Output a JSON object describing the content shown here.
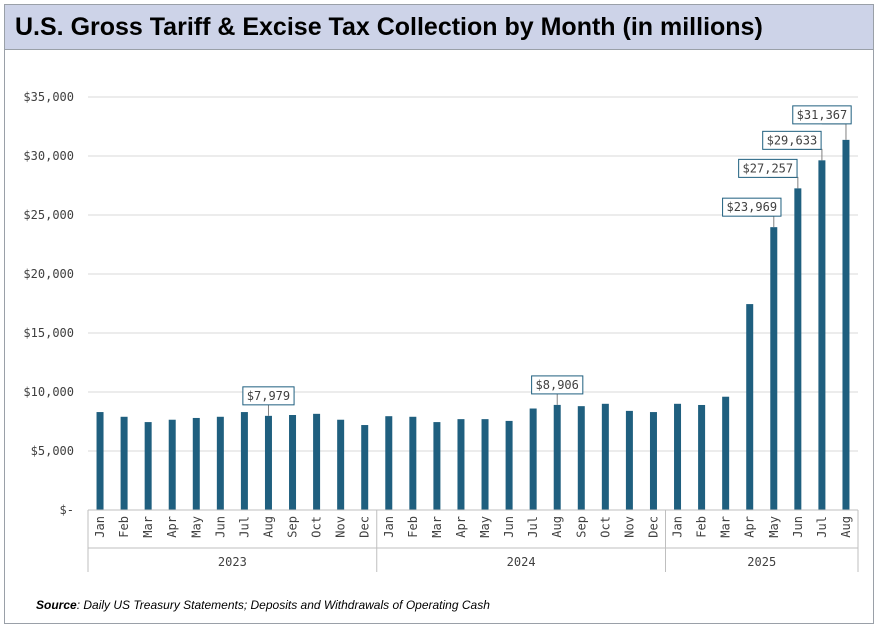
{
  "chart_data": {
    "type": "bar",
    "title": "U.S. Gross Tariff & Excise Tax Collection by Month (in millions)",
    "xlabel": "",
    "ylabel": "",
    "ylim": [
      0,
      35000
    ],
    "yticks": [
      0,
      5000,
      10000,
      15000,
      20000,
      25000,
      30000,
      35000
    ],
    "ytick_labels": [
      "$-",
      "$5,000",
      "$10,000",
      "$15,000",
      "$20,000",
      "$25,000",
      "$30,000",
      "$35,000"
    ],
    "grid": true,
    "legend": "none",
    "bar_color": "#1f5f7f",
    "groups": [
      {
        "label": "2023",
        "months": [
          "Jan",
          "Feb",
          "Mar",
          "Apr",
          "May",
          "Jun",
          "Jul",
          "Aug",
          "Sep",
          "Oct",
          "Nov",
          "Dec"
        ],
        "values": [
          8300,
          7900,
          7450,
          7650,
          7800,
          7900,
          8300,
          7979,
          8050,
          8150,
          7650,
          7200
        ]
      },
      {
        "label": "2024",
        "months": [
          "Jan",
          "Feb",
          "Mar",
          "Apr",
          "May",
          "Jun",
          "Jul",
          "Aug",
          "Sep",
          "Oct",
          "Nov",
          "Dec"
        ],
        "values": [
          7950,
          7900,
          7450,
          7700,
          7700,
          7550,
          8600,
          8906,
          8800,
          9000,
          8400,
          8300
        ]
      },
      {
        "label": "2025",
        "months": [
          "Jan",
          "Feb",
          "Mar",
          "Apr",
          "May",
          "Jun",
          "Jul",
          "Aug"
        ],
        "values": [
          9000,
          8900,
          9600,
          17450,
          23969,
          27257,
          29633,
          31367
        ]
      }
    ],
    "data_labels": [
      {
        "group": 0,
        "month": "Aug",
        "text": "$7,979"
      },
      {
        "group": 1,
        "month": "Aug",
        "text": "$8,906"
      },
      {
        "group": 2,
        "month": "May",
        "text": "$23,969"
      },
      {
        "group": 2,
        "month": "Jun",
        "text": "$27,257"
      },
      {
        "group": 2,
        "month": "Jul",
        "text": "$29,633"
      },
      {
        "group": 2,
        "month": "Aug",
        "text": "$31,367"
      }
    ]
  },
  "source": {
    "label": "Source",
    "text": ": Daily US Treasury Statements;  Deposits and Withdrawals of Operating Cash"
  }
}
